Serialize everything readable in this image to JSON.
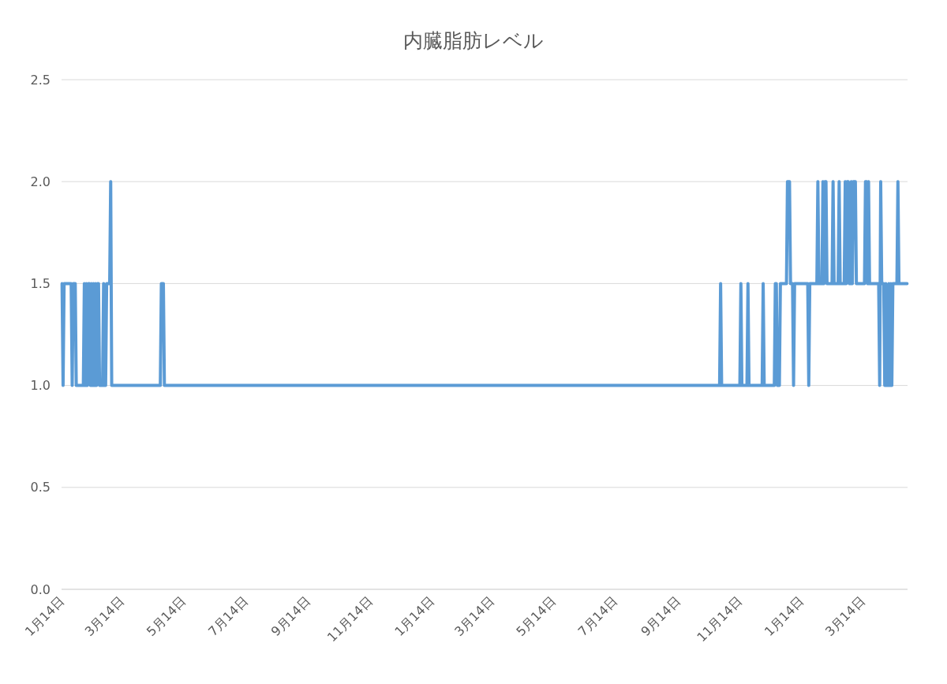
{
  "chart_data": {
    "type": "line",
    "title": "内臓脂肪レベル",
    "categories": [
      "1月14日",
      null,
      null,
      null,
      null,
      null,
      null,
      null,
      null,
      null,
      null,
      null,
      null,
      null,
      null,
      null,
      null,
      null,
      null,
      null,
      null,
      null,
      null,
      null,
      null,
      null,
      null,
      null,
      null,
      null,
      null,
      null,
      null,
      null,
      null,
      null,
      null,
      null,
      null,
      null,
      null,
      null,
      null,
      null,
      null,
      null,
      null,
      null,
      null,
      null,
      null,
      null,
      null,
      null,
      null,
      null,
      null,
      null,
      null,
      "3月14日",
      null,
      null,
      null,
      null,
      null,
      null,
      null,
      null,
      null,
      null,
      null,
      null,
      null,
      null,
      null,
      null,
      null,
      null,
      null,
      null,
      null,
      null,
      null,
      null,
      null,
      null,
      null,
      null,
      null,
      null,
      null,
      null,
      null,
      null,
      null,
      null,
      null,
      null,
      null,
      null,
      null,
      null,
      null,
      null,
      null,
      null,
      null,
      null,
      null,
      null,
      null,
      null,
      null,
      null,
      null,
      null,
      null,
      null,
      null,
      null,
      "5月14日",
      null,
      null,
      null,
      null,
      null,
      null,
      null,
      null,
      null,
      null,
      null,
      null,
      null,
      null,
      null,
      null,
      null,
      null,
      null,
      null,
      null,
      null,
      null,
      null,
      null,
      null,
      null,
      null,
      null,
      null,
      null,
      null,
      null,
      null,
      null,
      null,
      null,
      null,
      null,
      null,
      null,
      null,
      null,
      null,
      null,
      null,
      null,
      null,
      null,
      null,
      null,
      null,
      null,
      null,
      null,
      null,
      null,
      null,
      null,
      null,
      "7月14日",
      null,
      null,
      null,
      null,
      null,
      null,
      null,
      null,
      null,
      null,
      null,
      null,
      null,
      null,
      null,
      null,
      null,
      null,
      null,
      null,
      null,
      null,
      null,
      null,
      null,
      null,
      null,
      null,
      null,
      null,
      null,
      null,
      null,
      null,
      null,
      null,
      null,
      null,
      null,
      null,
      null,
      null,
      null,
      null,
      null,
      null,
      null,
      null,
      null,
      null,
      null,
      null,
      null,
      null,
      null,
      null,
      null,
      null,
      null,
      null,
      null,
      "9月14日",
      null,
      null,
      null,
      null,
      null,
      null,
      null,
      null,
      null,
      null,
      null,
      null,
      null,
      null,
      null,
      null,
      null,
      null,
      null,
      null,
      null,
      null,
      null,
      null,
      null,
      null,
      null,
      null,
      null,
      null,
      null,
      null,
      null,
      null,
      null,
      null,
      null,
      null,
      null,
      null,
      null,
      null,
      null,
      null,
      null,
      null,
      null,
      null,
      null,
      null,
      null,
      null,
      null,
      null,
      null,
      null,
      null,
      null,
      null,
      null,
      "11月14日",
      null,
      null,
      null,
      null,
      null,
      null,
      null,
      null,
      null,
      null,
      null,
      null,
      null,
      null,
      null,
      null,
      null,
      null,
      null,
      null,
      null,
      null,
      null,
      null,
      null,
      null,
      null,
      null,
      null,
      null,
      null,
      null,
      null,
      null,
      null,
      null,
      null,
      null,
      null,
      null,
      null,
      null,
      null,
      null,
      null,
      null,
      null,
      null,
      null,
      null,
      null,
      null,
      null,
      null,
      null,
      null,
      null,
      null,
      null,
      null,
      "1月14日",
      null,
      null,
      null,
      null,
      null,
      null,
      null,
      null,
      null,
      null,
      null,
      null,
      null,
      null,
      null,
      null,
      null,
      null,
      null,
      null,
      null,
      null,
      null,
      null,
      null,
      null,
      null,
      null,
      null,
      null,
      null,
      null,
      null,
      null,
      null,
      null,
      null,
      null,
      null,
      null,
      null,
      null,
      null,
      null,
      null,
      null,
      null,
      null,
      null,
      null,
      null,
      null,
      null,
      null,
      null,
      null,
      null,
      null,
      "3月14日",
      null,
      null,
      null,
      null,
      null,
      null,
      null,
      null,
      null,
      null,
      null,
      null,
      null,
      null,
      null,
      null,
      null,
      null,
      null,
      null,
      null,
      null,
      null,
      null,
      null,
      null,
      null,
      null,
      null,
      null,
      null,
      null,
      null,
      null,
      null,
      null,
      null,
      null,
      null,
      null,
      null,
      null,
      null,
      null,
      null,
      null,
      null,
      null,
      null,
      null,
      null,
      null,
      null,
      null,
      null,
      null,
      null,
      null,
      null,
      null,
      "5月14日",
      null,
      null,
      null,
      null,
      null,
      null,
      null,
      null,
      null,
      null,
      null,
      null,
      null,
      null,
      null,
      null,
      null,
      null,
      null,
      null,
      null,
      null,
      null,
      null,
      null,
      null,
      null,
      null,
      null,
      null,
      null,
      null,
      null,
      null,
      null,
      null,
      null,
      null,
      null,
      null,
      null,
      null,
      null,
      null,
      null,
      null,
      null,
      null,
      null,
      null,
      null,
      null,
      null,
      null,
      null,
      null,
      null,
      null,
      null,
      null,
      "7月14日",
      null,
      null,
      null,
      null,
      null,
      null,
      null,
      null,
      null,
      null,
      null,
      null,
      null,
      null,
      null,
      null,
      null,
      null,
      null,
      null,
      null,
      null,
      null,
      null,
      null,
      null,
      null,
      null,
      null,
      null,
      null,
      null,
      null,
      null,
      null,
      null,
      null,
      null,
      null,
      null,
      null,
      null,
      null,
      null,
      null,
      null,
      null,
      null,
      null,
      null,
      null,
      null,
      null,
      null,
      null,
      null,
      null,
      null,
      null,
      null,
      null,
      "9月14日",
      null,
      null,
      null,
      null,
      null,
      null,
      null,
      null,
      null,
      null,
      null,
      null,
      null,
      null,
      null,
      null,
      null,
      null,
      null,
      null,
      null,
      null,
      null,
      null,
      null,
      null,
      null,
      null,
      null,
      null,
      null,
      null,
      null,
      null,
      null,
      null,
      null,
      null,
      null,
      null,
      null,
      null,
      null,
      null,
      null,
      null,
      null,
      null,
      null,
      null,
      null,
      null,
      null,
      null,
      null,
      null,
      null,
      null,
      null,
      null,
      "11月14日",
      null,
      null,
      null,
      null,
      null,
      null,
      null,
      null,
      null,
      null,
      null,
      null,
      null,
      null,
      null,
      null,
      null,
      null,
      null,
      null,
      null,
      null,
      null,
      null,
      null,
      null,
      null,
      null,
      null,
      null,
      null,
      null,
      null,
      null,
      null,
      null,
      null,
      null,
      null,
      null,
      null,
      null,
      null,
      null,
      null,
      null,
      null,
      null,
      null,
      null,
      null,
      null,
      null,
      null,
      null,
      null,
      null,
      null,
      null,
      null,
      "1月14日",
      null,
      null,
      null,
      null,
      null,
      null,
      null,
      null,
      null,
      null,
      null,
      null,
      null,
      null,
      null,
      null,
      null,
      null,
      null,
      null,
      null,
      null,
      null,
      null,
      null,
      null,
      null,
      null,
      null,
      null,
      null,
      null,
      null,
      null,
      null,
      null,
      null,
      null,
      null,
      null,
      null,
      null,
      null,
      null,
      null,
      null,
      null,
      null,
      null,
      null,
      null,
      null,
      null,
      null,
      null,
      null,
      null,
      null,
      null,
      "3月14日",
      null,
      null,
      null,
      null,
      null,
      null,
      null,
      null,
      null,
      null,
      null,
      null,
      null,
      null,
      null,
      null,
      null,
      null,
      null,
      null,
      null,
      null,
      null,
      null,
      null,
      null,
      null,
      null,
      null,
      null,
      null,
      null,
      null,
      null,
      null,
      null,
      null,
      null,
      null,
      null,
      null,
      null,
      null,
      null
    ],
    "series": [
      {
        "color": "#5b9bd5",
        "values": [
          1.5,
          1,
          1.5,
          1.5,
          1.5,
          1.5,
          1.5,
          1.5,
          1.5,
          1.5,
          1,
          1.5,
          1.5,
          1.5,
          1,
          1,
          1,
          1,
          1,
          1,
          1,
          1,
          1.5,
          1,
          1.5,
          1,
          1.5,
          1.5,
          1,
          1.5,
          1,
          1.5,
          1,
          1.5,
          1,
          1.5,
          1.5,
          1,
          1,
          1,
          1,
          1.5,
          1,
          1,
          1.5,
          1.5,
          1.5,
          1.5,
          2,
          1,
          1,
          1,
          1,
          1,
          1,
          1,
          1,
          1,
          1,
          1,
          1,
          1,
          1,
          1,
          1,
          1,
          1,
          1,
          1,
          1,
          1,
          1,
          1,
          1,
          1,
          1,
          1,
          1,
          1,
          1,
          1,
          1,
          1,
          1,
          1,
          1,
          1,
          1,
          1,
          1,
          1,
          1,
          1,
          1,
          1,
          1,
          1,
          1,
          1.5,
          1.5,
          1.5,
          1,
          1,
          1,
          1,
          1,
          1,
          1,
          1,
          1,
          1,
          1,
          1,
          1,
          1,
          1,
          1,
          1,
          1,
          1,
          1,
          1,
          1,
          1,
          1,
          1,
          1,
          1,
          1,
          1,
          1,
          1,
          1,
          1,
          1,
          1,
          1,
          1,
          1,
          1,
          1,
          1,
          1,
          1,
          1,
          1,
          1,
          1,
          1,
          1,
          1,
          1,
          1,
          1,
          1,
          1,
          1,
          1,
          1,
          1,
          1,
          1,
          1,
          1,
          1,
          1,
          1,
          1,
          1,
          1,
          1,
          1,
          1,
          1,
          1,
          1,
          1,
          1,
          1,
          1,
          1,
          1,
          1,
          1,
          1,
          1,
          1,
          1,
          1,
          1,
          1,
          1,
          1,
          1,
          1,
          1,
          1,
          1,
          1,
          1,
          1,
          1,
          1,
          1,
          1,
          1,
          1,
          1,
          1,
          1,
          1,
          1,
          1,
          1,
          1,
          1,
          1,
          1,
          1,
          1,
          1,
          1,
          1,
          1,
          1,
          1,
          1,
          1,
          1,
          1,
          1,
          1,
          1,
          1,
          1,
          1,
          1,
          1,
          1,
          1,
          1,
          1,
          1,
          1,
          1,
          1,
          1,
          1,
          1,
          1,
          1,
          1,
          1,
          1,
          1,
          1,
          1,
          1,
          1,
          1,
          1,
          1,
          1,
          1,
          1,
          1,
          1,
          1,
          1,
          1,
          1,
          1,
          1,
          1,
          1,
          1,
          1,
          1,
          1,
          1,
          1,
          1,
          1,
          1,
          1,
          1,
          1,
          1,
          1,
          1,
          1,
          1,
          1,
          1,
          1,
          1,
          1,
          1,
          1,
          1,
          1,
          1,
          1,
          1,
          1,
          1,
          1,
          1,
          1,
          1,
          1,
          1,
          1,
          1,
          1,
          1,
          1,
          1,
          1,
          1,
          1,
          1,
          1,
          1,
          1,
          1,
          1,
          1,
          1,
          1,
          1,
          1,
          1,
          1,
          1,
          1,
          1,
          1,
          1,
          1,
          1,
          1,
          1,
          1,
          1,
          1,
          1,
          1,
          1,
          1,
          1,
          1,
          1,
          1,
          1,
          1,
          1,
          1,
          1,
          1,
          1,
          1,
          1,
          1,
          1,
          1,
          1,
          1,
          1,
          1,
          1,
          1,
          1,
          1,
          1,
          1,
          1,
          1,
          1,
          1,
          1,
          1,
          1,
          1,
          1,
          1,
          1,
          1,
          1,
          1,
          1,
          1,
          1,
          1,
          1,
          1,
          1,
          1,
          1,
          1,
          1,
          1,
          1,
          1,
          1,
          1,
          1,
          1,
          1,
          1,
          1,
          1,
          1,
          1,
          1,
          1,
          1,
          1,
          1,
          1,
          1,
          1,
          1,
          1,
          1,
          1,
          1,
          1,
          1,
          1,
          1,
          1,
          1,
          1,
          1,
          1,
          1,
          1,
          1,
          1,
          1,
          1,
          1,
          1,
          1,
          1,
          1,
          1,
          1,
          1,
          1,
          1,
          1,
          1,
          1,
          1,
          1,
          1,
          1,
          1,
          1,
          1,
          1,
          1,
          1,
          1,
          1,
          1,
          1,
          1,
          1,
          1,
          1,
          1,
          1,
          1,
          1,
          1,
          1,
          1,
          1,
          1,
          1,
          1,
          1,
          1,
          1,
          1,
          1,
          1,
          1,
          1,
          1,
          1,
          1,
          1,
          1,
          1,
          1,
          1,
          1,
          1,
          1,
          1,
          1,
          1,
          1,
          1,
          1,
          1,
          1,
          1,
          1,
          1,
          1,
          1,
          1,
          1,
          1,
          1,
          1,
          1,
          1,
          1,
          1,
          1,
          1,
          1,
          1,
          1,
          1,
          1,
          1,
          1,
          1,
          1,
          1,
          1,
          1,
          1,
          1,
          1,
          1,
          1,
          1,
          1,
          1,
          1,
          1,
          1,
          1,
          1,
          1,
          1,
          1,
          1,
          1,
          1,
          1,
          1,
          1,
          1,
          1,
          1,
          1,
          1,
          1,
          1,
          1,
          1,
          1,
          1,
          1,
          1,
          1,
          1,
          1,
          1,
          1,
          1,
          1,
          1,
          1,
          1,
          1,
          1,
          1,
          1,
          1,
          1,
          1,
          1,
          1,
          1,
          1,
          1,
          1,
          1,
          1,
          1,
          1,
          1,
          1,
          1,
          1,
          1,
          1,
          1,
          1,
          1,
          1,
          1,
          1,
          1,
          1,
          1,
          1,
          1,
          1,
          1,
          1,
          1,
          1,
          1,
          1,
          1,
          1,
          1,
          1,
          1,
          1,
          1,
          1,
          1,
          1,
          1,
          1,
          1,
          1,
          1,
          1,
          1,
          1,
          1,
          1,
          1,
          1,
          1,
          1,
          1,
          1.5,
          1,
          1,
          1,
          1,
          1,
          1,
          1,
          1,
          1,
          1,
          1,
          1,
          1,
          1,
          1,
          1,
          1,
          1,
          1,
          1.5,
          1,
          1,
          1,
          1,
          1,
          1,
          1.5,
          1,
          1,
          1,
          1,
          1,
          1,
          1,
          1,
          1,
          1,
          1,
          1,
          1,
          1,
          1.5,
          1,
          1,
          1,
          1,
          1,
          1,
          1,
          1,
          1,
          1,
          1,
          1.5,
          1.5,
          1,
          1,
          1,
          1.5,
          1.5,
          1.5,
          1.5,
          1.5,
          1.5,
          1.5,
          2,
          2,
          2,
          1.5,
          1.5,
          1.5,
          1,
          1.5,
          1.5,
          1.5,
          1.5,
          1.5,
          1.5,
          1.5,
          1.5,
          1.5,
          1.5,
          1.5,
          1.5,
          1.5,
          1.5,
          1,
          1.5,
          1.5,
          1.5,
          1.5,
          1.5,
          1.5,
          1.5,
          1.5,
          2,
          1.5,
          1.5,
          1.5,
          1.5,
          2,
          1.5,
          2,
          2,
          1.5,
          1.5,
          1.5,
          1.5,
          1.5,
          1.5,
          2,
          1.5,
          1.5,
          1.5,
          1.5,
          1.5,
          2,
          1.5,
          1.5,
          1.5,
          1.5,
          1.5,
          2,
          1.5,
          2,
          2,
          1.5,
          1.5,
          2,
          1.5,
          2,
          2,
          2,
          1.5,
          1.5,
          1.5,
          1.5,
          1.5,
          1.5,
          1.5,
          1.5,
          1.5,
          2,
          2,
          1.5,
          2,
          1.5,
          1.5,
          1.5,
          1.5,
          1.5,
          1.5,
          1.5,
          1.5,
          1.5,
          1.5,
          1,
          2,
          1.5,
          1.5,
          1.5,
          1,
          1.5,
          1,
          1,
          1.5,
          1,
          1.5,
          1,
          1.5,
          1.5,
          1.5,
          1.5,
          1.5,
          2,
          1.5,
          1.5,
          1.5,
          1.5,
          1.5,
          1.5,
          1.5,
          1.5,
          1.5
        ]
      }
    ],
    "ylim": [
      0,
      2.5
    ],
    "yticks": [
      {
        "value": 0,
        "label": "0.0"
      },
      {
        "value": 0.5,
        "label": "0.5"
      },
      {
        "value": 1,
        "label": "1.0"
      },
      {
        "value": 1.5,
        "label": "1.5"
      },
      {
        "value": 2,
        "label": "2.0"
      },
      {
        "value": 2.5,
        "label": "2.5"
      }
    ],
    "grid": "y",
    "marker": "none",
    "line_style": "solid"
  }
}
